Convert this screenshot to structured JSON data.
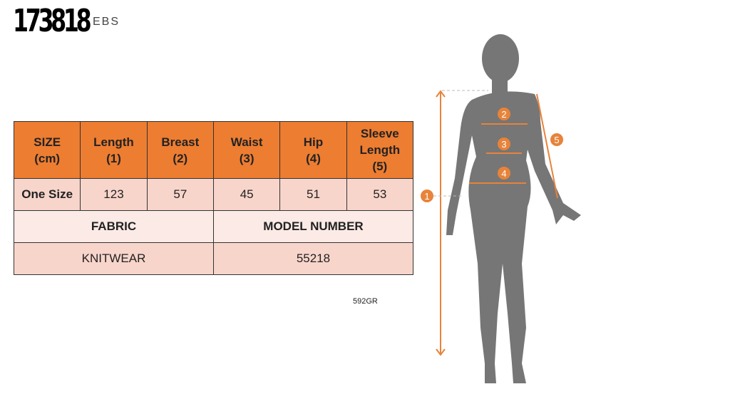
{
  "product_code": "173818",
  "brand": "EBS",
  "table": {
    "headers": [
      [
        "SIZE",
        "(cm)"
      ],
      [
        "Length",
        "(1)"
      ],
      [
        "Breast",
        "(2)"
      ],
      [
        "Waist",
        "(3)"
      ],
      [
        "Hip",
        "(4)"
      ],
      [
        "Sleeve Length",
        "(5)"
      ]
    ],
    "row": [
      "One Size",
      "123",
      "57",
      "45",
      "51",
      "53"
    ],
    "fabric_label": "FABRIC",
    "model_label": "MODEL NUMBER",
    "fabric": "KNITWEAR",
    "model": "55218"
  },
  "note": "592GR",
  "markers": [
    "1",
    "2",
    "3",
    "4",
    "5"
  ],
  "colors": {
    "header": "#ED7D31",
    "row": "#F8D5CB",
    "light_row": "#FBEAE5",
    "silhouette": "#767676",
    "accent": "#E8833A"
  }
}
